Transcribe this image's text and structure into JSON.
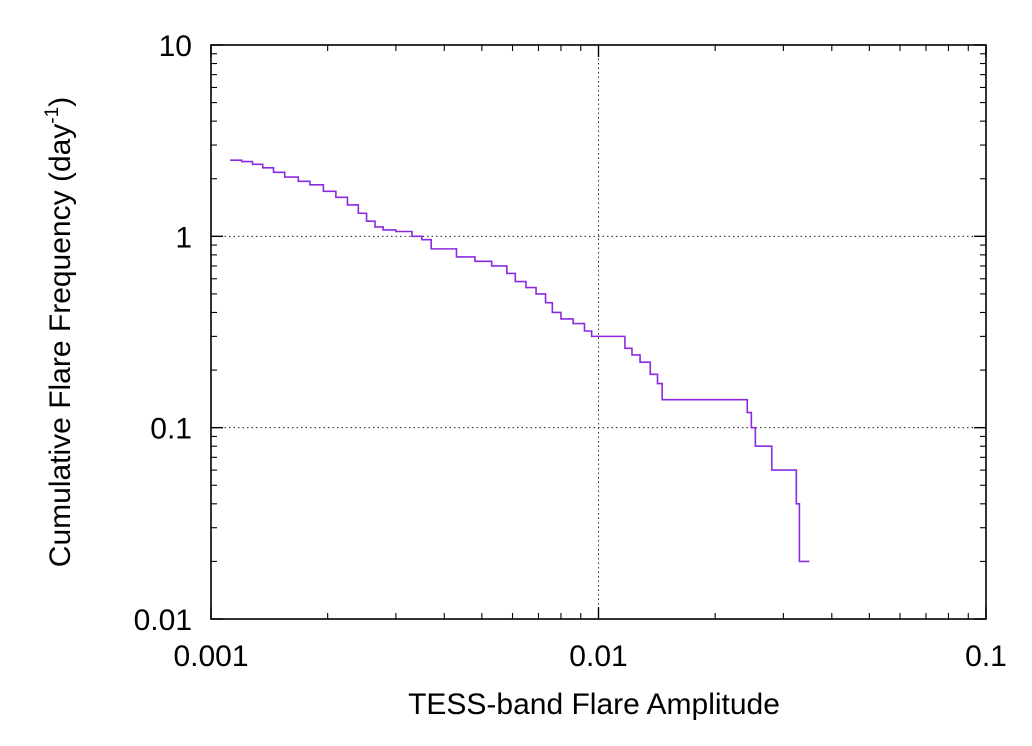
{
  "chart_data": {
    "type": "line",
    "line_style": "step",
    "xlabel": "TESS-band Flare Amplitude",
    "ylabel_main": "Cumulative Flare Frequency (day",
    "ylabel_sup": "-1",
    "ylabel_close": ")",
    "x_scale": "log",
    "y_scale": "log",
    "xlim": [
      0.001,
      0.1
    ],
    "ylim": [
      0.01,
      10
    ],
    "x_ticks": [
      0.001,
      0.01,
      0.1
    ],
    "x_tick_labels": [
      "0.001",
      "0.01",
      "0.1"
    ],
    "y_ticks": [
      0.01,
      0.1,
      1,
      10
    ],
    "y_tick_labels": [
      "0.01",
      "0.1",
      "1",
      "10"
    ],
    "grid": "dotted at major ticks",
    "series_color": "#8a2be2",
    "series": [
      {
        "points": [
          [
            0.00112,
            2.5
          ],
          [
            0.0012,
            2.46
          ],
          [
            0.00128,
            2.38
          ],
          [
            0.00136,
            2.28
          ],
          [
            0.00145,
            2.16
          ],
          [
            0.00155,
            2.04
          ],
          [
            0.00168,
            1.94
          ],
          [
            0.0018,
            1.86
          ],
          [
            0.00195,
            1.72
          ],
          [
            0.0021,
            1.6
          ],
          [
            0.00225,
            1.46
          ],
          [
            0.0024,
            1.32
          ],
          [
            0.00252,
            1.2
          ],
          [
            0.00265,
            1.12
          ],
          [
            0.00278,
            1.08
          ],
          [
            0.003,
            1.06
          ],
          [
            0.0032,
            1.06
          ],
          [
            0.0033,
            1.0
          ],
          [
            0.0035,
            0.96
          ],
          [
            0.0037,
            0.86
          ],
          [
            0.0042,
            0.86
          ],
          [
            0.0043,
            0.78
          ],
          [
            0.0048,
            0.74
          ],
          [
            0.0053,
            0.7
          ],
          [
            0.0058,
            0.64
          ],
          [
            0.0061,
            0.58
          ],
          [
            0.0065,
            0.54
          ],
          [
            0.0069,
            0.5
          ],
          [
            0.0073,
            0.45
          ],
          [
            0.0076,
            0.4
          ],
          [
            0.008,
            0.37
          ],
          [
            0.0086,
            0.35
          ],
          [
            0.0092,
            0.32
          ],
          [
            0.0096,
            0.3
          ],
          [
            0.0115,
            0.3
          ],
          [
            0.0117,
            0.26
          ],
          [
            0.0122,
            0.24
          ],
          [
            0.0128,
            0.22
          ],
          [
            0.0136,
            0.19
          ],
          [
            0.0142,
            0.17
          ],
          [
            0.0146,
            0.14
          ],
          [
            0.0238,
            0.14
          ],
          [
            0.0242,
            0.12
          ],
          [
            0.0248,
            0.1
          ],
          [
            0.0254,
            0.08
          ],
          [
            0.028,
            0.06
          ],
          [
            0.0322,
            0.06
          ],
          [
            0.0324,
            0.04
          ],
          [
            0.033,
            0.02
          ],
          [
            0.035,
            0.02
          ]
        ]
      }
    ]
  }
}
